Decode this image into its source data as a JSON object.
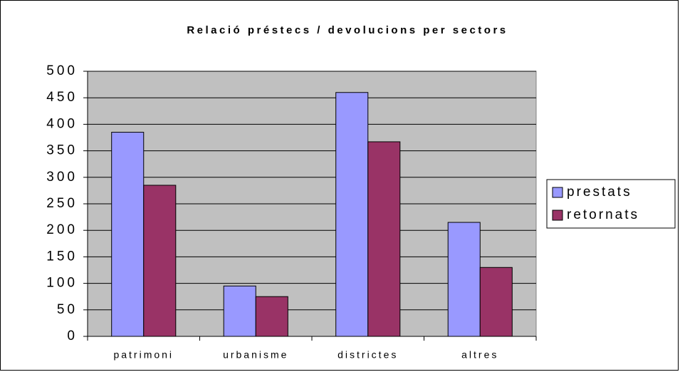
{
  "chart_data": {
    "type": "bar",
    "title": "Relació préstecs / devolucions per sectors",
    "categories": [
      "patrimoni",
      "urbanisme",
      "districtes",
      "altres"
    ],
    "series": [
      {
        "name": "prestats",
        "color": "#9999ff",
        "values": [
          385,
          95,
          460,
          215
        ]
      },
      {
        "name": "retornats",
        "color": "#993366",
        "values": [
          285,
          75,
          367,
          130
        ]
      }
    ],
    "ylim": [
      0,
      500
    ],
    "yticks": [
      0,
      50,
      100,
      150,
      200,
      250,
      300,
      350,
      400,
      450,
      500
    ],
    "grid": true,
    "legend": "right"
  }
}
